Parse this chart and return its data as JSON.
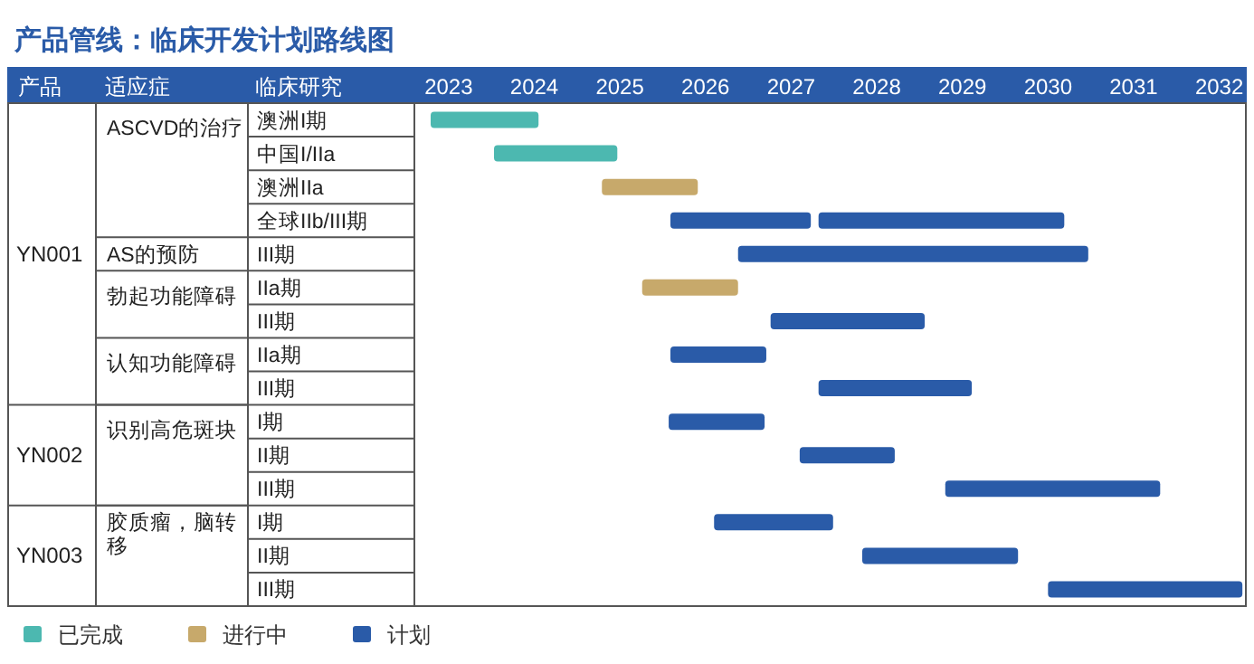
{
  "chart_data": {
    "type": "bar",
    "orientation": "horizontal",
    "title": "产品管线：临床开发计划路线图",
    "ylabel": "临床研究",
    "categories": [
      "澳洲I期",
      "中国I/IIa",
      "澳洲IIa",
      "全球IIb/III期",
      "III期",
      "IIa期",
      "III期",
      "IIa期",
      "III期",
      "I期",
      "II期",
      "III期",
      "I期",
      "II期",
      "III期"
    ],
    "series": [
      {
        "name": "已完成",
        "color": "#4cb8b0",
        "base": [
          2022.79,
          2023.53,
          null,
          null,
          null,
          null,
          null,
          null,
          null,
          null,
          null,
          null,
          null,
          null,
          null
        ],
        "values": [
          1.26,
          1.44,
          null,
          null,
          null,
          null,
          null,
          null,
          null,
          null,
          null,
          null,
          null,
          null,
          null
        ]
      },
      {
        "name": "进行中",
        "color": "#c7a96b",
        "base": [
          null,
          null,
          2024.79,
          null,
          null,
          2025.26,
          null,
          null,
          null,
          null,
          null,
          null,
          null,
          null,
          null
        ],
        "values": [
          null,
          null,
          1.12,
          null,
          null,
          1.12,
          null,
          null,
          null,
          null,
          null,
          null,
          null,
          null,
          null
        ]
      },
      {
        "name": "计划",
        "color": "#2a5ba8",
        "base": [
          null,
          null,
          null,
          2025.59,
          2026.38,
          null,
          2026.76,
          2025.59,
          2027.32,
          2025.57,
          2027.1,
          2028.8,
          2026.1,
          2027.83,
          2030.0
        ],
        "values": [
          null,
          null,
          null,
          1.64,
          4.09,
          null,
          1.8,
          1.12,
          1.79,
          1.12,
          1.11,
          2.51,
          1.39,
          1.82,
          2.27
        ]
      },
      {
        "color": "#2a5ba8",
        "base": [
          null,
          null,
          null,
          2027.32,
          null,
          null,
          null,
          null,
          null,
          null,
          null,
          null,
          null,
          null,
          null
        ],
        "values": [
          null,
          null,
          null,
          2.87,
          null,
          null,
          null,
          null,
          null,
          null,
          null,
          null,
          null,
          null,
          null
        ]
      }
    ],
    "xlim": [
      2022.6,
      2032.3
    ],
    "xticks": [
      2023,
      2024,
      2025,
      2026,
      2027,
      2028,
      2029,
      2030,
      2031,
      2032
    ],
    "legend": "bottom left",
    "annotations": [
      "产品",
      "适应症",
      "YN001",
      "ASCVD的治疗",
      "AS的预防",
      "勃起功能障碍",
      "认知功能障碍",
      "YN002",
      "识别高危斑块",
      "YN003",
      "胶质瘤，脑转移"
    ]
  }
}
